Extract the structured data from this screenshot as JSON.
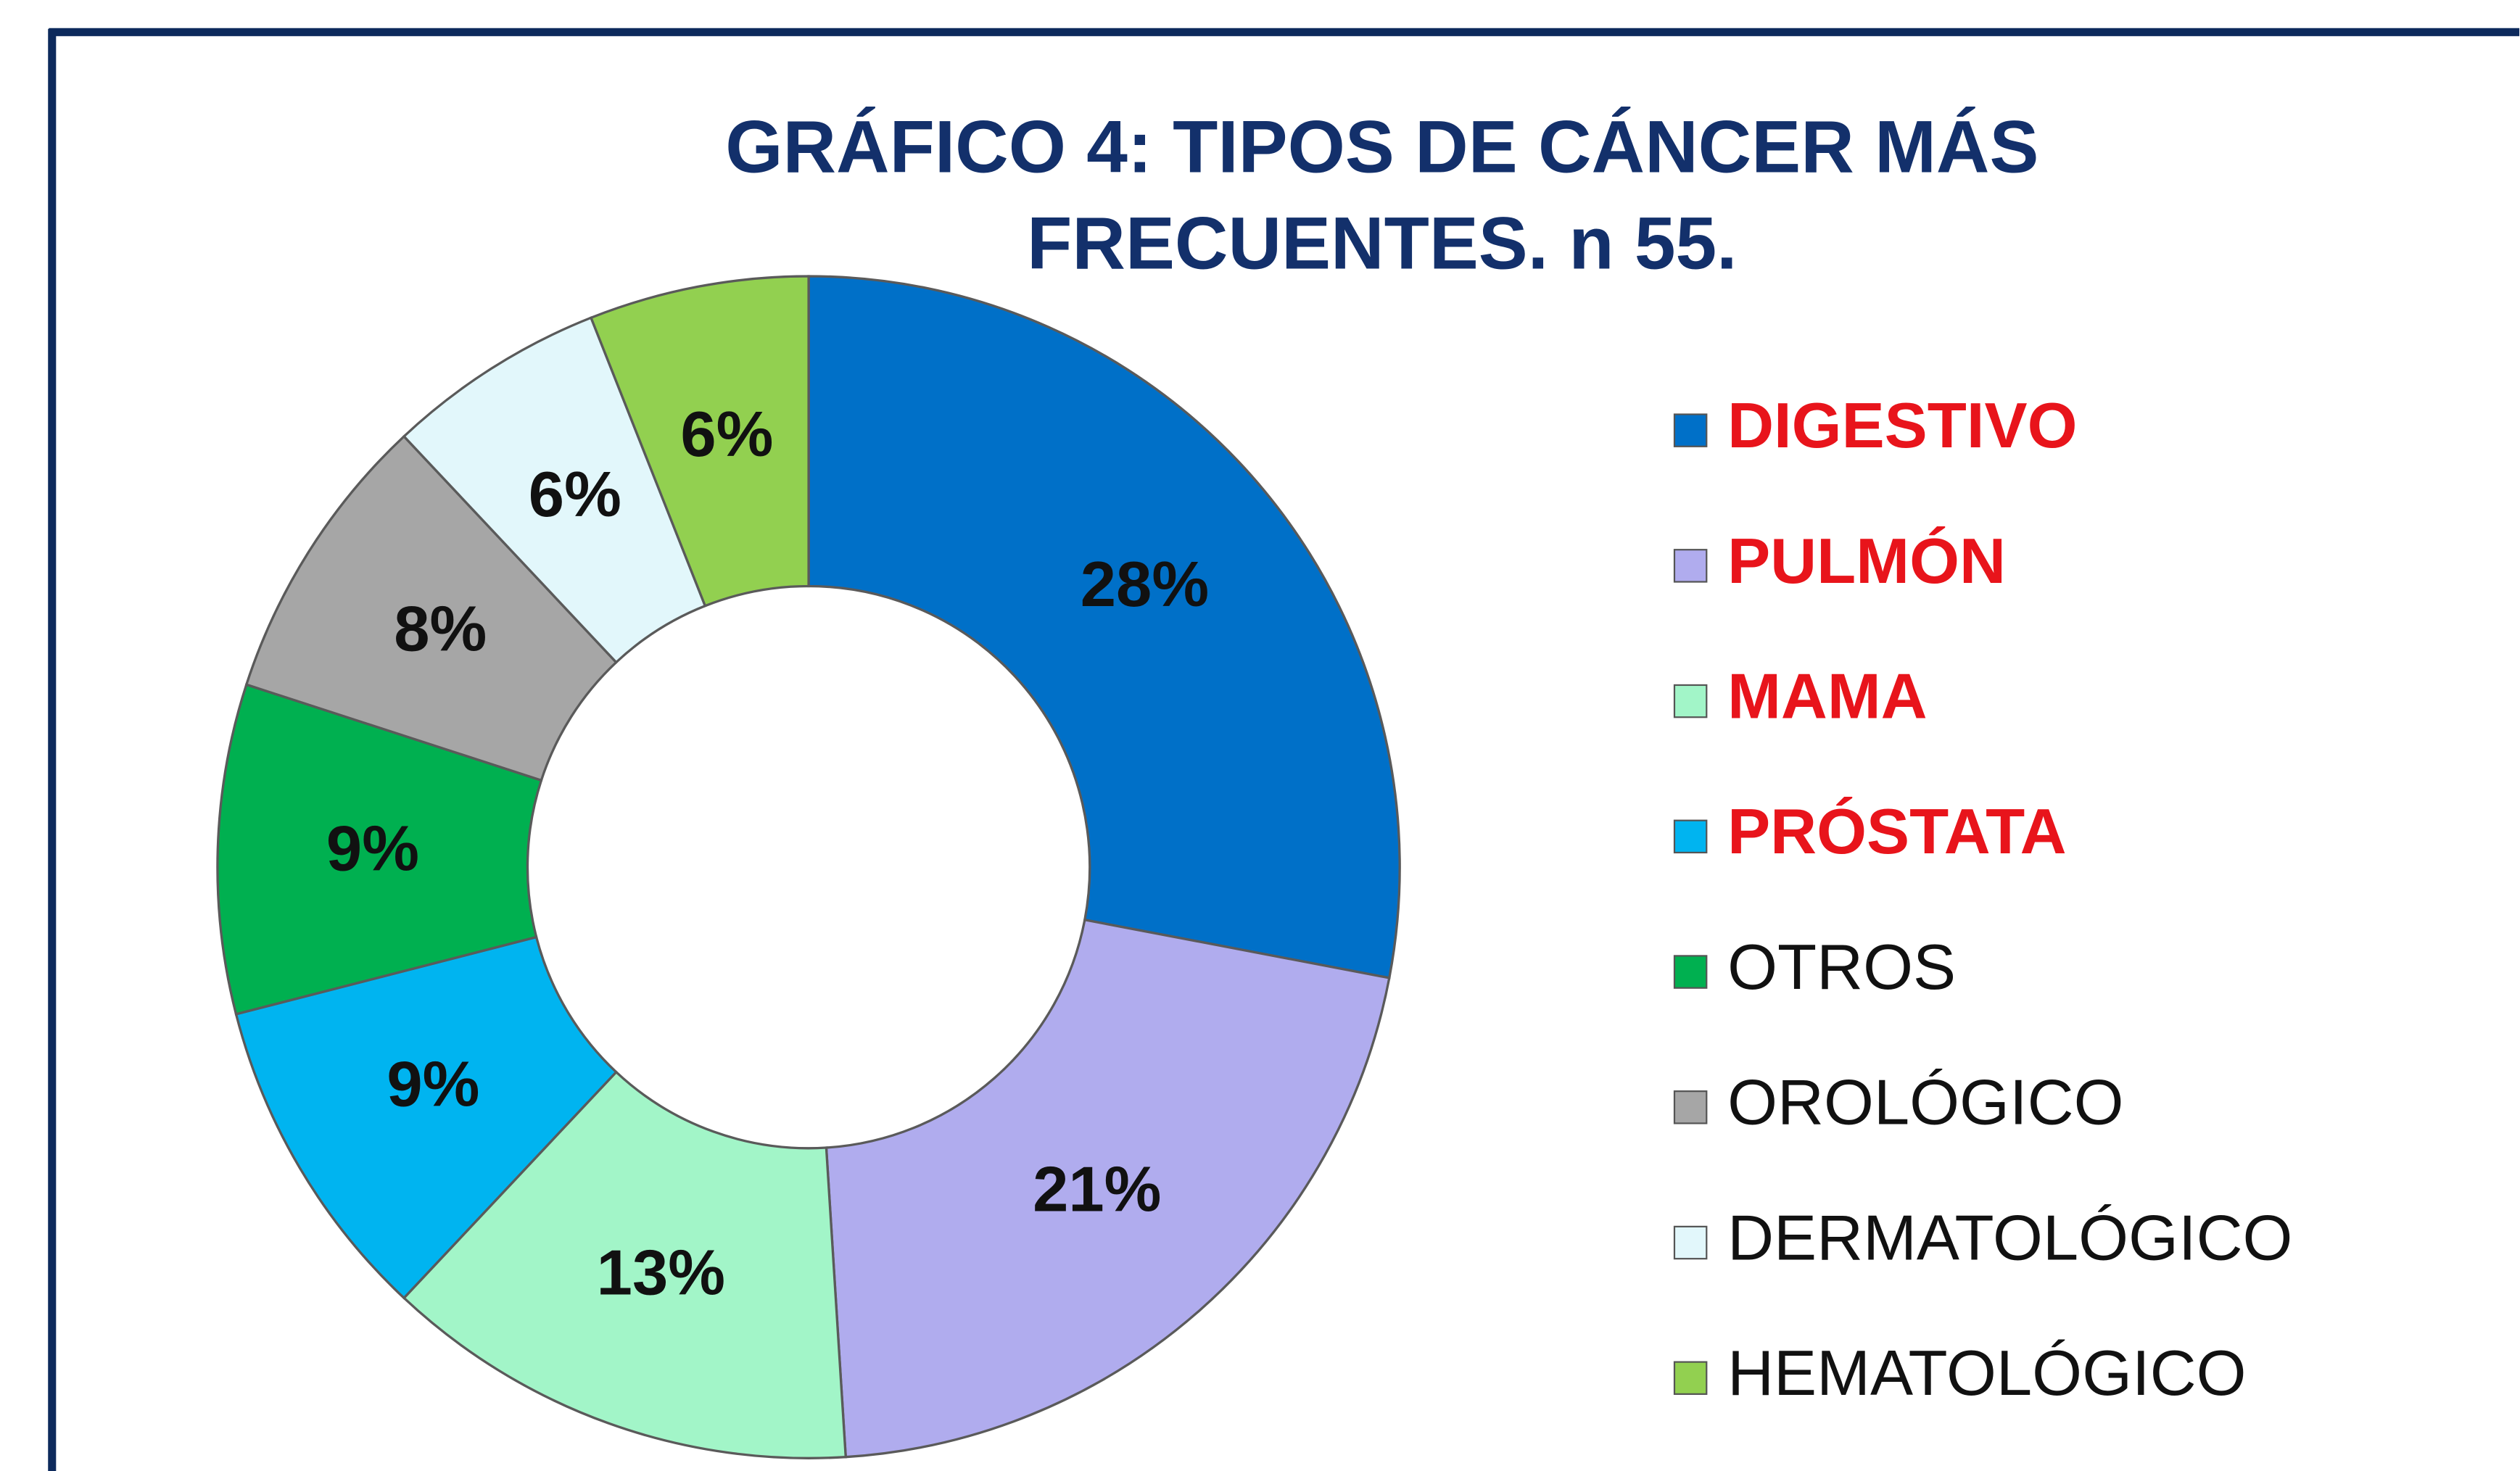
{
  "chart_data": {
    "type": "pie",
    "title": [
      "GRÁFICO 4: TIPOS DE CÁNCER MÁS",
      "FRECUENTES. n 55."
    ],
    "categories": [
      "DIGESTIVO",
      "PULMÓN",
      "MAMA",
      "PRÓSTATA",
      "OTROS",
      "OROLÓGICO",
      "DERMATOLÓGICO",
      "HEMATOLÓGICO"
    ],
    "values": [
      28,
      21,
      13,
      9,
      9,
      8,
      6,
      6
    ],
    "value_labels": [
      "28%",
      "21%",
      "13%",
      "9%",
      "9%",
      "8%",
      "6%",
      "6%"
    ],
    "colors": [
      "#0070c8",
      "#b0acee",
      "#a2f5c8",
      "#00b4f0",
      "#00b050",
      "#a6a6a6",
      "#e2f7fb",
      "#92d050"
    ],
    "legend_text_colors": [
      "#e8141b",
      "#e8141b",
      "#e8141b",
      "#e8141b",
      "#111111",
      "#111111",
      "#111111",
      "#111111"
    ],
    "donut": true,
    "legend": "right"
  }
}
